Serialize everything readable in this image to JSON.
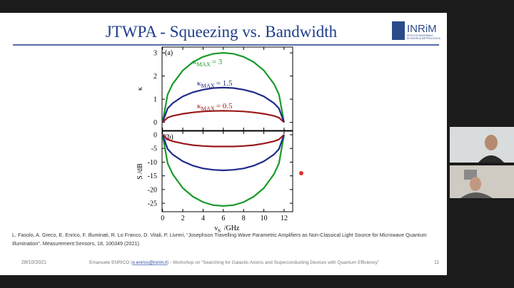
{
  "slide": {
    "title": "JTWPA - Squeezing vs. Bandwidth",
    "logo": {
      "name": "INRiM",
      "subtitle": [
        "ISTITUTO NAZIONALE",
        "DI RICERCA METROLOGICA"
      ]
    },
    "reference": [
      "L. Fasolo, A. Greco, E. Enrico, F. Illuminati, R. Lo Franco, D. Vitali, P. Livreri, “Josephson Travelling Wave Parametric Amplifiers as Non-Classical Light Source for Microwave Quantum",
      "Illumination”. Measurement:Sensors, 18, 100349 (2021)."
    ],
    "footer": {
      "date": "28/10/2021",
      "author": "Emanuele ENRICO (",
      "email": "e.enrico@inrim.it",
      "workshop": ") - Workshop on “Searching for Galactic Axions and Superconducting Devices with Quantum Efficiency”",
      "page": "11"
    }
  },
  "chart_data": [
    {
      "type": "line",
      "panel": "(a)",
      "ylabel": "κ",
      "x": [
        0,
        0.5,
        1,
        2,
        3,
        4,
        5,
        6,
        7,
        8,
        9,
        10,
        11,
        11.5,
        12
      ],
      "xlim": [
        -0.05,
        12.85
      ],
      "xticks": [
        0,
        2,
        4,
        6,
        8,
        10,
        12
      ],
      "ylim": [
        -0.35,
        3.25
      ],
      "yticks": [
        0,
        1,
        2,
        3
      ],
      "series": [
        {
          "label": {
            "base": "κ",
            "sub": "MAX",
            "rest": "= 3"
          },
          "color": "#1a9a2a",
          "values": [
            0,
            1.2,
            1.66,
            2.24,
            2.6,
            2.83,
            2.96,
            3,
            2.96,
            2.83,
            2.6,
            2.24,
            1.66,
            1.2,
            0
          ]
        },
        {
          "label": {
            "base": "κ",
            "sub": "MAX",
            "rest": "= 1.5"
          },
          "color": "#1f2a8a",
          "values": [
            0,
            0.6,
            0.83,
            1.12,
            1.3,
            1.41,
            1.48,
            1.5,
            1.48,
            1.41,
            1.3,
            1.12,
            0.83,
            0.6,
            0
          ]
        },
        {
          "label": {
            "base": "κ",
            "sub": "MAX",
            "rest": "= 0.5"
          },
          "color": "#9a1a1a",
          "values": [
            0,
            0.2,
            0.28,
            0.37,
            0.43,
            0.47,
            0.49,
            0.5,
            0.49,
            0.47,
            0.43,
            0.37,
            0.28,
            0.2,
            0
          ]
        }
      ]
    },
    {
      "type": "line",
      "panel": "(b)",
      "ylabel": "S /dB",
      "xlabel": {
        "base": "ν",
        "sub": "S",
        "rest": " /GHz"
      },
      "x": [
        0,
        0.5,
        1,
        2,
        3,
        4,
        5,
        6,
        7,
        8,
        9,
        10,
        11,
        11.5,
        12
      ],
      "xlim": [
        -0.05,
        12.85
      ],
      "xticks": [
        0,
        2,
        4,
        6,
        8,
        10,
        12
      ],
      "ylim": [
        -28.1,
        1.3
      ],
      "yticks": [
        0,
        -5,
        -10,
        -15,
        -20,
        -25
      ],
      "series": [
        {
          "color": "#1a9a2a",
          "values": [
            0,
            -10.4,
            -14.4,
            -19.5,
            -22.6,
            -24.6,
            -25.7,
            -26,
            -25.7,
            -24.6,
            -22.6,
            -19.5,
            -14.4,
            -10.4,
            0
          ]
        },
        {
          "color": "#1f2a8a",
          "values": [
            0,
            -5.2,
            -7.2,
            -9.7,
            -11.3,
            -12.3,
            -12.8,
            -13,
            -12.8,
            -12.3,
            -11.3,
            -9.7,
            -7.2,
            -5.2,
            0
          ]
        },
        {
          "color": "#9a1a1a",
          "values": [
            0,
            -1.7,
            -2.4,
            -3.2,
            -3.8,
            -4.1,
            -4.3,
            -4.3,
            -4.3,
            -4.1,
            -3.8,
            -3.2,
            -2.4,
            -1.7,
            0
          ]
        }
      ]
    }
  ]
}
